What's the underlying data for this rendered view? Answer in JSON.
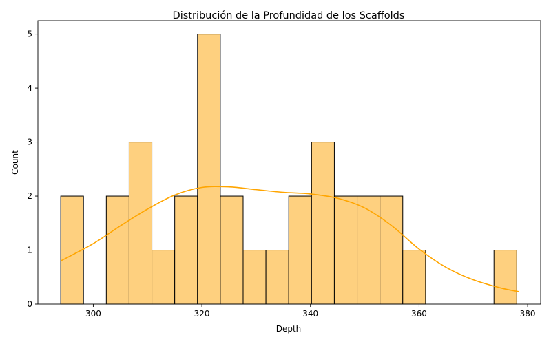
{
  "chart_data": {
    "type": "bar",
    "title": "Distribución de la Profundidad de los Scaffolds",
    "xlabel": "Depth",
    "ylabel": "Count",
    "xlim": [
      289.8,
      382.4
    ],
    "ylim": [
      0,
      5.25
    ],
    "xticks": [
      300,
      320,
      340,
      360,
      380
    ],
    "yticks": [
      0,
      1,
      2,
      3,
      4,
      5
    ],
    "bin_start": 294.0,
    "bin_width": 4.2,
    "counts": [
      2,
      0,
      2,
      3,
      1,
      2,
      5,
      2,
      1,
      1,
      2,
      3,
      2,
      2,
      2,
      1,
      0,
      0,
      0,
      1
    ],
    "bar_color": "#fed07f",
    "edge_color": "#000000",
    "kde": {
      "color": "#ffa500",
      "x": [
        294.0,
        300.0,
        305.0,
        310.0,
        315.0,
        320.0,
        325.0,
        330.0,
        335.0,
        340.0,
        345.0,
        350.0,
        355.0,
        360.0,
        365.0,
        370.0,
        375.0,
        378.4
      ],
      "y": [
        0.8,
        1.12,
        1.45,
        1.76,
        2.02,
        2.16,
        2.17,
        2.12,
        2.07,
        2.04,
        1.96,
        1.78,
        1.45,
        1.02,
        0.68,
        0.45,
        0.3,
        0.23
      ]
    }
  }
}
